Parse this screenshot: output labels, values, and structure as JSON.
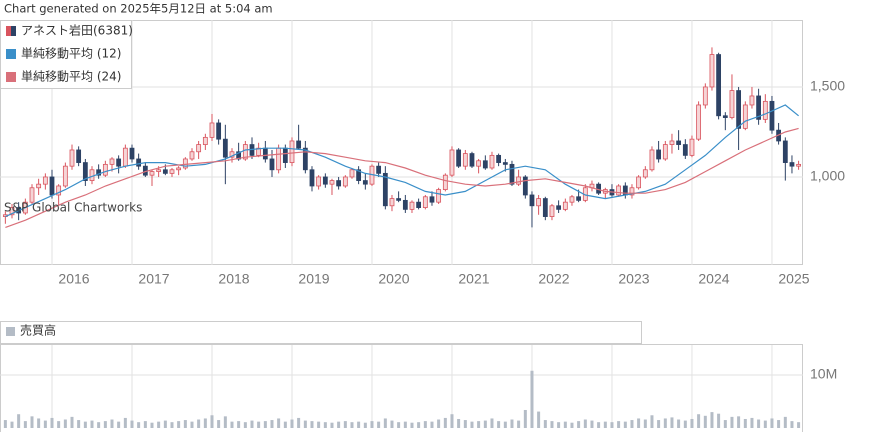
{
  "chart_data": {
    "type": "candlestick",
    "title": "Chart generated on 2025年5月12日 at 5:04 am",
    "annotations": [
      "S&P Global Chartworks"
    ],
    "volume_title": "売買高",
    "xlim": [
      2015.35,
      2025.388
    ],
    "xticks": [
      2016,
      2017,
      2018,
      2019,
      2020,
      2021,
      2022,
      2023,
      2024,
      2025
    ],
    "ylim": [
      511,
      1872
    ],
    "yticks": [
      {
        "value": 1000,
        "label": "1,000"
      },
      {
        "value": 1500,
        "label": "1,500"
      }
    ],
    "y2lim": [
      0,
      15660000
    ],
    "y2ticks": [
      {
        "value": 10000000,
        "label": "10M"
      }
    ],
    "grid": true,
    "x": [
      2015.417,
      2015.5,
      2015.583,
      2015.667,
      2015.75,
      2015.833,
      2015.917,
      2016.0,
      2016.083,
      2016.167,
      2016.25,
      2016.333,
      2016.417,
      2016.5,
      2016.583,
      2016.667,
      2016.75,
      2016.833,
      2016.917,
      2017.0,
      2017.083,
      2017.167,
      2017.25,
      2017.333,
      2017.417,
      2017.5,
      2017.583,
      2017.667,
      2017.75,
      2017.833,
      2017.917,
      2018.0,
      2018.083,
      2018.167,
      2018.25,
      2018.333,
      2018.417,
      2018.5,
      2018.583,
      2018.667,
      2018.75,
      2018.833,
      2018.917,
      2019.0,
      2019.083,
      2019.167,
      2019.25,
      2019.333,
      2019.417,
      2019.5,
      2019.583,
      2019.667,
      2019.75,
      2019.833,
      2019.917,
      2020.0,
      2020.083,
      2020.167,
      2020.25,
      2020.333,
      2020.417,
      2020.5,
      2020.583,
      2020.667,
      2020.75,
      2020.833,
      2020.917,
      2021.0,
      2021.083,
      2021.167,
      2021.25,
      2021.333,
      2021.417,
      2021.5,
      2021.583,
      2021.667,
      2021.75,
      2021.833,
      2021.917,
      2022.0,
      2022.083,
      2022.167,
      2022.25,
      2022.333,
      2022.417,
      2022.5,
      2022.583,
      2022.667,
      2022.75,
      2022.833,
      2022.917,
      2023.0,
      2023.083,
      2023.167,
      2023.25,
      2023.333,
      2023.417,
      2023.5,
      2023.583,
      2023.667,
      2023.75,
      2023.833,
      2023.917,
      2024.0,
      2024.083,
      2024.167,
      2024.25,
      2024.333,
      2024.417,
      2024.5,
      2024.583,
      2024.667,
      2024.75,
      2024.833,
      2024.917,
      2025.0,
      2025.083,
      2025.167,
      2025.25,
      2025.333
    ],
    "series": [
      {
        "name": "アネスト岩田(6381)",
        "up_color": "#d9545e",
        "down_color": "#2d4265",
        "ohlc": [
          [
            780,
            810,
            740,
            790
          ],
          [
            790,
            850,
            770,
            830
          ],
          [
            830,
            860,
            760,
            800
          ],
          [
            800,
            880,
            790,
            860
          ],
          [
            860,
            960,
            850,
            940
          ],
          [
            940,
            990,
            900,
            960
          ],
          [
            960,
            1020,
            930,
            1000
          ],
          [
            1000,
            1040,
            880,
            900
          ],
          [
            900,
            960,
            840,
            950
          ],
          [
            950,
            1080,
            940,
            1060
          ],
          [
            1060,
            1180,
            1040,
            1150
          ],
          [
            1150,
            1170,
            1060,
            1080
          ],
          [
            1080,
            1100,
            950,
            980
          ],
          [
            980,
            1060,
            960,
            1040
          ],
          [
            1040,
            1070,
            990,
            1010
          ],
          [
            1010,
            1090,
            1000,
            1070
          ],
          [
            1070,
            1110,
            1030,
            1100
          ],
          [
            1100,
            1120,
            1020,
            1060
          ],
          [
            1060,
            1180,
            1050,
            1160
          ],
          [
            1160,
            1180,
            1080,
            1100
          ],
          [
            1100,
            1130,
            1040,
            1060
          ],
          [
            1060,
            1080,
            1000,
            1010
          ],
          [
            1010,
            1040,
            950,
            1030
          ],
          [
            1030,
            1060,
            1000,
            1040
          ],
          [
            1040,
            1070,
            1010,
            1020
          ],
          [
            1020,
            1050,
            1000,
            1040
          ],
          [
            1040,
            1060,
            1010,
            1050
          ],
          [
            1050,
            1110,
            1040,
            1100
          ],
          [
            1100,
            1160,
            1090,
            1140
          ],
          [
            1140,
            1200,
            1100,
            1180
          ],
          [
            1180,
            1240,
            1150,
            1220
          ],
          [
            1220,
            1350,
            1200,
            1300
          ],
          [
            1300,
            1320,
            1180,
            1210
          ],
          [
            1210,
            1290,
            960,
            1110
          ],
          [
            1110,
            1160,
            1080,
            1140
          ],
          [
            1140,
            1190,
            1090,
            1100
          ],
          [
            1100,
            1200,
            1090,
            1180
          ],
          [
            1180,
            1220,
            1100,
            1120
          ],
          [
            1120,
            1190,
            1110,
            1160
          ],
          [
            1160,
            1200,
            1080,
            1100
          ],
          [
            1100,
            1150,
            1000,
            1040
          ],
          [
            1040,
            1180,
            1020,
            1160
          ],
          [
            1160,
            1180,
            1050,
            1080
          ],
          [
            1080,
            1220,
            1060,
            1200
          ],
          [
            1200,
            1290,
            1150,
            1160
          ],
          [
            1160,
            1200,
            1020,
            1040
          ],
          [
            1040,
            1060,
            920,
            950
          ],
          [
            950,
            1010,
            930,
            1000
          ],
          [
            1000,
            1020,
            940,
            960
          ],
          [
            960,
            990,
            900,
            980
          ],
          [
            980,
            1000,
            930,
            950
          ],
          [
            950,
            1010,
            940,
            1000
          ],
          [
            1000,
            1050,
            990,
            1040
          ],
          [
            1040,
            1060,
            960,
            980
          ],
          [
            980,
            1020,
            930,
            960
          ],
          [
            960,
            1070,
            950,
            1060
          ],
          [
            1060,
            1080,
            1000,
            1020
          ],
          [
            1020,
            1060,
            820,
            840
          ],
          [
            840,
            900,
            810,
            880
          ],
          [
            880,
            920,
            860,
            870
          ],
          [
            870,
            900,
            800,
            820
          ],
          [
            820,
            870,
            800,
            860
          ],
          [
            860,
            880,
            820,
            830
          ],
          [
            830,
            900,
            820,
            890
          ],
          [
            890,
            920,
            840,
            860
          ],
          [
            860,
            940,
            850,
            930
          ],
          [
            930,
            1020,
            920,
            1010
          ],
          [
            1010,
            1170,
            1000,
            1150
          ],
          [
            1150,
            1160,
            1050,
            1060
          ],
          [
            1060,
            1150,
            1040,
            1130
          ],
          [
            1130,
            1140,
            1050,
            1060
          ],
          [
            1060,
            1100,
            1020,
            1090
          ],
          [
            1090,
            1120,
            1040,
            1050
          ],
          [
            1050,
            1140,
            1040,
            1120
          ],
          [
            1120,
            1130,
            1060,
            1080
          ],
          [
            1080,
            1100,
            1030,
            1070
          ],
          [
            1070,
            1090,
            950,
            960
          ],
          [
            960,
            1040,
            950,
            1000
          ],
          [
            1000,
            1010,
            880,
            900
          ],
          [
            900,
            920,
            720,
            840
          ],
          [
            840,
            900,
            790,
            880
          ],
          [
            880,
            890,
            760,
            780
          ],
          [
            780,
            850,
            760,
            840
          ],
          [
            840,
            870,
            800,
            820
          ],
          [
            820,
            880,
            810,
            860
          ],
          [
            860,
            900,
            840,
            890
          ],
          [
            890,
            930,
            860,
            870
          ],
          [
            870,
            960,
            860,
            940
          ],
          [
            940,
            980,
            920,
            960
          ],
          [
            960,
            970,
            900,
            910
          ],
          [
            910,
            940,
            880,
            930
          ],
          [
            930,
            960,
            890,
            900
          ],
          [
            900,
            960,
            890,
            950
          ],
          [
            950,
            970,
            880,
            900
          ],
          [
            900,
            960,
            880,
            940
          ],
          [
            940,
            1010,
            930,
            1000
          ],
          [
            1000,
            1060,
            990,
            1040
          ],
          [
            1040,
            1170,
            1030,
            1150
          ],
          [
            1150,
            1200,
            1080,
            1100
          ],
          [
            1100,
            1200,
            1090,
            1180
          ],
          [
            1180,
            1240,
            1130,
            1200
          ],
          [
            1200,
            1260,
            1150,
            1180
          ],
          [
            1180,
            1210,
            1100,
            1120
          ],
          [
            1120,
            1230,
            1110,
            1210
          ],
          [
            1210,
            1420,
            1200,
            1400
          ],
          [
            1400,
            1520,
            1380,
            1500
          ],
          [
            1500,
            1720,
            1480,
            1680
          ],
          [
            1680,
            1690,
            1320,
            1340
          ],
          [
            1340,
            1360,
            1260,
            1330
          ],
          [
            1330,
            1570,
            1320,
            1480
          ],
          [
            1480,
            1500,
            1150,
            1270
          ],
          [
            1270,
            1420,
            1260,
            1400
          ],
          [
            1400,
            1500,
            1380,
            1450
          ],
          [
            1450,
            1490,
            1290,
            1320
          ],
          [
            1320,
            1460,
            1300,
            1420
          ],
          [
            1420,
            1450,
            1240,
            1260
          ],
          [
            1260,
            1300,
            1180,
            1200
          ],
          [
            1200,
            1220,
            980,
            1080
          ],
          [
            1080,
            1120,
            1020,
            1060
          ],
          [
            1060,
            1090,
            1040,
            1070
          ]
        ]
      },
      {
        "name": "単純移動平均 (12)",
        "color": "#3a8fc9",
        "x": [
          2015.417,
          2015.667,
          2015.917,
          2016.167,
          2016.417,
          2016.667,
          2016.917,
          2017.167,
          2017.417,
          2017.667,
          2017.917,
          2018.167,
          2018.417,
          2018.667,
          2018.917,
          2019.167,
          2019.417,
          2019.667,
          2019.917,
          2020.167,
          2020.417,
          2020.667,
          2020.917,
          2021.167,
          2021.417,
          2021.667,
          2021.917,
          2022.167,
          2022.417,
          2022.667,
          2022.917,
          2023.167,
          2023.417,
          2023.667,
          2023.917,
          2024.167,
          2024.417,
          2024.667,
          2024.917,
          2025.167,
          2025.333
        ],
        "values": [
          780,
          830,
          880,
          930,
          990,
          1030,
          1060,
          1080,
          1080,
          1060,
          1070,
          1100,
          1150,
          1160,
          1160,
          1150,
          1110,
          1060,
          1020,
          1000,
          970,
          920,
          900,
          920,
          980,
          1040,
          1060,
          1040,
          960,
          900,
          880,
          900,
          920,
          960,
          1040,
          1120,
          1220,
          1310,
          1350,
          1400,
          1340
        ]
      },
      {
        "name": "単純移動平均 (24)",
        "color": "#d9707a",
        "x": [
          2015.417,
          2015.667,
          2015.917,
          2016.167,
          2016.417,
          2016.667,
          2016.917,
          2017.167,
          2017.417,
          2017.667,
          2017.917,
          2018.167,
          2018.417,
          2018.667,
          2018.917,
          2019.167,
          2019.417,
          2019.667,
          2019.917,
          2020.167,
          2020.417,
          2020.667,
          2020.917,
          2021.167,
          2021.417,
          2021.667,
          2021.917,
          2022.167,
          2022.417,
          2022.667,
          2022.917,
          2023.167,
          2023.417,
          2023.667,
          2023.917,
          2024.167,
          2024.417,
          2024.667,
          2024.917,
          2025.167,
          2025.333
        ],
        "values": [
          720,
          760,
          810,
          860,
          900,
          950,
          990,
          1030,
          1060,
          1070,
          1080,
          1090,
          1110,
          1120,
          1130,
          1140,
          1130,
          1110,
          1090,
          1080,
          1050,
          1010,
          980,
          960,
          950,
          960,
          980,
          990,
          970,
          950,
          920,
          910,
          910,
          930,
          970,
          1030,
          1090,
          1150,
          1200,
          1250,
          1270
        ]
      },
      {
        "name": "売買高",
        "color": "#b4bcc6",
        "axis": "y2",
        "values": [
          1500000,
          1200000,
          2600000,
          1300000,
          2200000,
          1800000,
          1400000,
          1900000,
          1300000,
          1600000,
          2100000,
          1500000,
          1200000,
          1400000,
          1100000,
          1300000,
          1600000,
          1200000,
          1900000,
          1400000,
          1100000,
          1300000,
          1000000,
          1200000,
          1400000,
          1100000,
          1300000,
          1500000,
          1200000,
          1600000,
          1800000,
          2400000,
          1500000,
          2200000,
          1200000,
          1300000,
          1100000,
          1400000,
          1200000,
          1300000,
          1500000,
          1800000,
          1200000,
          1600000,
          1900000,
          1400000,
          1300000,
          1200000,
          1100000,
          1000000,
          1200000,
          1300000,
          1100000,
          1200000,
          1000000,
          1300000,
          1200000,
          1800000,
          1400000,
          1100000,
          1200000,
          1000000,
          1100000,
          1300000,
          1200000,
          1600000,
          1900000,
          2600000,
          1700000,
          1500000,
          1200000,
          1300000,
          1400000,
          1800000,
          1300000,
          1200000,
          1600000,
          1400000,
          3400000,
          10800000,
          3100000,
          1500000,
          1300000,
          1100000,
          1200000,
          1000000,
          1300000,
          1600000,
          1400000,
          1100000,
          1200000,
          1100000,
          1300000,
          1200000,
          1500000,
          1800000,
          1600000,
          2400000,
          1500000,
          1800000,
          2000000,
          1600000,
          1400000,
          1700000,
          2600000,
          2300000,
          3000000,
          2700000,
          1500000,
          2100000,
          2200000,
          1700000,
          1900000,
          1600000,
          1400000,
          1800000,
          1500000,
          2100000,
          1300000,
          1100000
        ]
      }
    ]
  }
}
